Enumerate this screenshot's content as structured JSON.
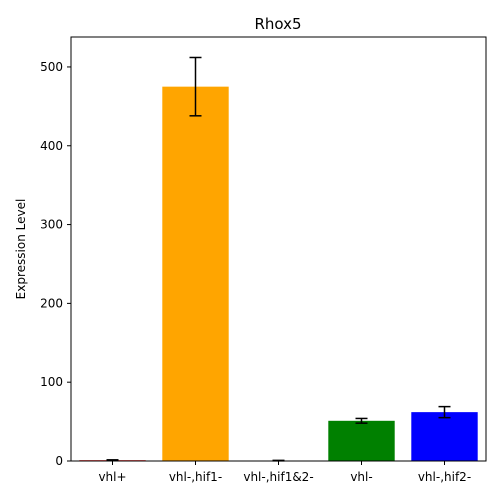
{
  "chart_data": {
    "type": "bar",
    "title": "Rhox5",
    "xlabel": "",
    "ylabel": "Expression Level",
    "categories": [
      "vhl+",
      "vhl-,hif1-",
      "vhl-,hif1&2-",
      "vhl-",
      "vhl-,hif2-"
    ],
    "values": [
      1,
      475,
      0.5,
      51,
      62
    ],
    "errors": [
      0.5,
      37,
      0.3,
      3,
      7
    ],
    "colors": [
      "#ff0000",
      "#ffa500",
      "#800080",
      "#008000",
      "#0000ff"
    ],
    "ylim": [
      0,
      538
    ],
    "yticks": [
      0,
      100,
      200,
      300,
      400,
      500
    ],
    "grid": false
  }
}
